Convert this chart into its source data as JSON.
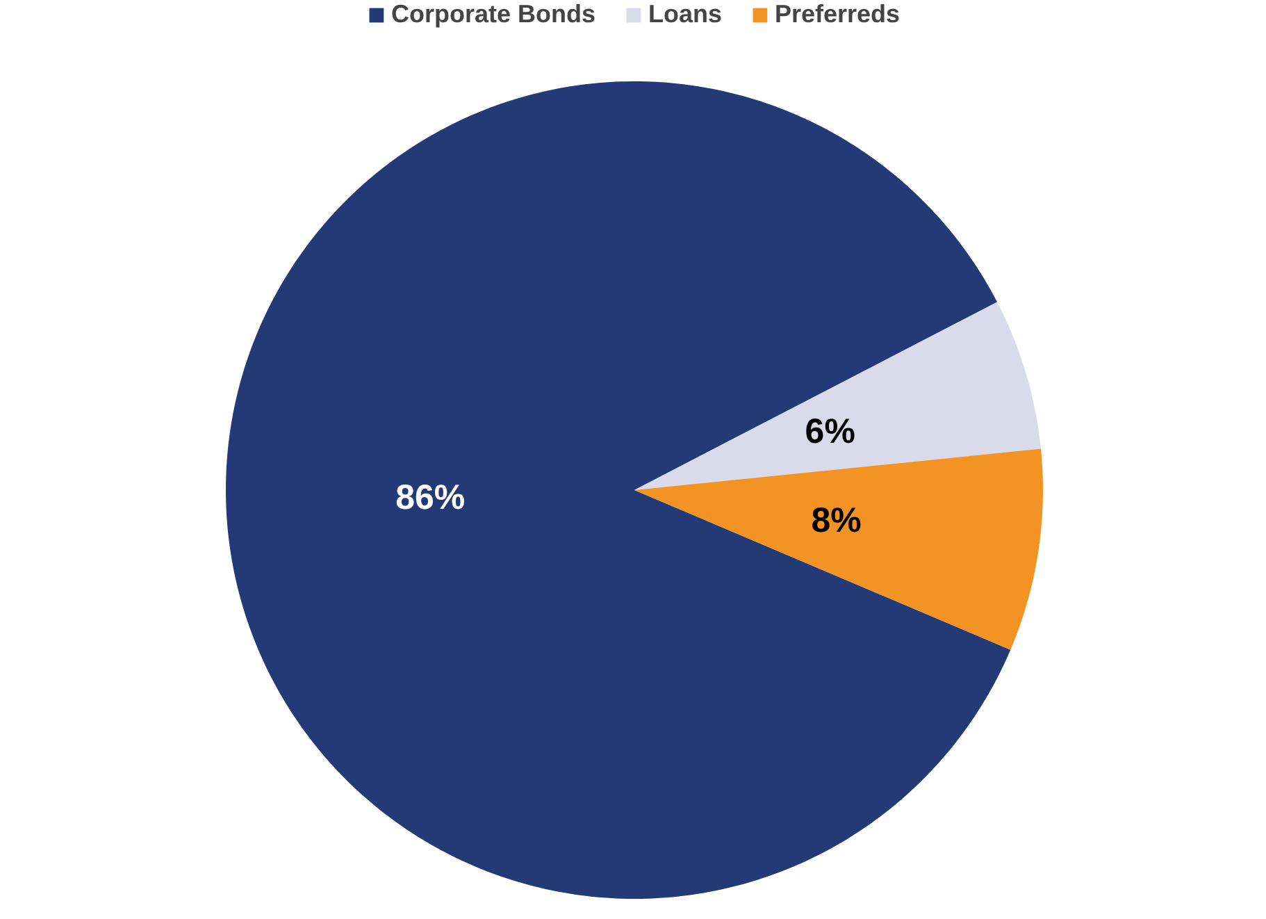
{
  "chart_data": {
    "type": "pie",
    "categories": [
      "Corporate Bonds",
      "Loans",
      "Preferreds"
    ],
    "values": [
      86,
      6,
      8
    ],
    "colors": [
      "#233a76",
      "#d9dbea",
      "#f39323"
    ],
    "value_labels": [
      "86%",
      "6%",
      "8%"
    ],
    "legend": "top"
  }
}
